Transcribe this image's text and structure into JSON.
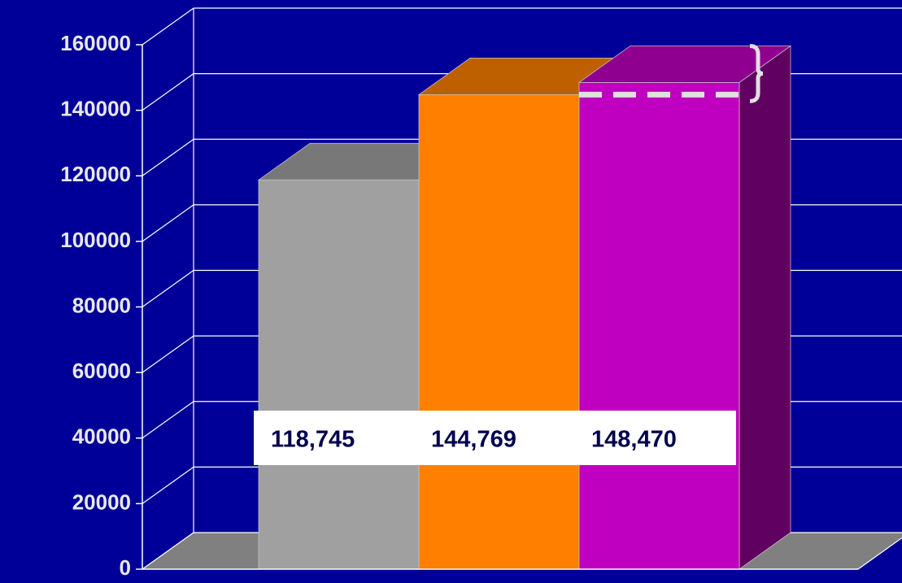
{
  "chart_data": {
    "type": "bar",
    "categories": [
      null,
      null,
      null
    ],
    "values": [
      118745,
      144769,
      148470
    ],
    "value_labels": [
      "118,745",
      "144,769",
      "148,470"
    ],
    "series_colors": [
      "#a0a0a0",
      "#ff8000",
      "#c000c0"
    ],
    "ylim": [
      0,
      160000
    ],
    "yticks": [
      0,
      20000,
      40000,
      60000,
      80000,
      100000,
      120000,
      140000,
      160000
    ],
    "grid": true
  }
}
